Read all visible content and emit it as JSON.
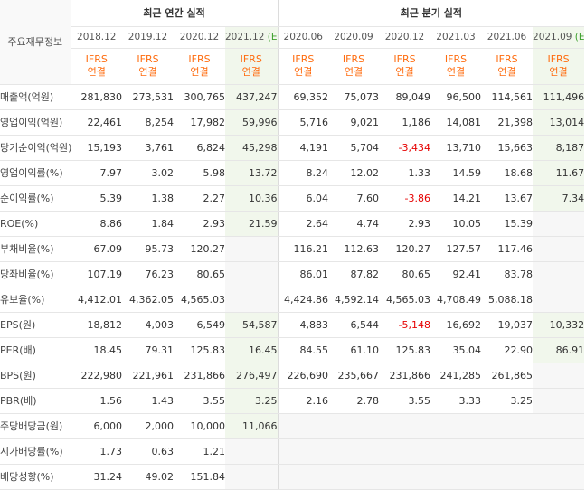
{
  "header": {
    "corner_label": "주요재무정보",
    "annual_title": "최근 연간 실적",
    "quarterly_title": "최근 분기 실적"
  },
  "columns": [
    {
      "date": "2018.12",
      "est": "",
      "ifrs_line1": "IFRS",
      "ifrs_line2": "연결"
    },
    {
      "date": "2019.12",
      "est": "",
      "ifrs_line1": "IFRS",
      "ifrs_line2": "연결"
    },
    {
      "date": "2020.12",
      "est": "",
      "ifrs_line1": "IFRS",
      "ifrs_line2": "연결"
    },
    {
      "date": "2021.12",
      "est": "(E)",
      "ifrs_line1": "IFRS",
      "ifrs_line2": "연결"
    },
    {
      "date": "2020.06",
      "est": "",
      "ifrs_line1": "IFRS",
      "ifrs_line2": "연결"
    },
    {
      "date": "2020.09",
      "est": "",
      "ifrs_line1": "IFRS",
      "ifrs_line2": "연결"
    },
    {
      "date": "2020.12",
      "est": "",
      "ifrs_line1": "IFRS",
      "ifrs_line2": "연결"
    },
    {
      "date": "2021.03",
      "est": "",
      "ifrs_line1": "IFRS",
      "ifrs_line2": "연결"
    },
    {
      "date": "2021.06",
      "est": "",
      "ifrs_line1": "IFRS",
      "ifrs_line2": "연결"
    },
    {
      "date": "2021.09",
      "est": "(E)",
      "ifrs_line1": "IFRS",
      "ifrs_line2": "연결"
    }
  ],
  "rows": [
    {
      "label": "매출액(억원)",
      "values": [
        "281,830",
        "273,531",
        "300,765",
        "437,247",
        "69,352",
        "75,073",
        "89,049",
        "96,500",
        "114,561",
        "111,496"
      ]
    },
    {
      "label": "영업이익(억원)",
      "values": [
        "22,461",
        "8,254",
        "17,982",
        "59,996",
        "5,716",
        "9,021",
        "1,186",
        "14,081",
        "21,398",
        "13,014"
      ]
    },
    {
      "label": "당기순이익(억원)",
      "values": [
        "15,193",
        "3,761",
        "6,824",
        "45,298",
        "4,191",
        "5,704",
        "-3,434",
        "13,710",
        "15,663",
        "8,187"
      ]
    },
    {
      "label": "영업이익률(%)",
      "values": [
        "7.97",
        "3.02",
        "5.98",
        "13.72",
        "8.24",
        "12.02",
        "1.33",
        "14.59",
        "18.68",
        "11.67"
      ]
    },
    {
      "label": "순이익률(%)",
      "values": [
        "5.39",
        "1.38",
        "2.27",
        "10.36",
        "6.04",
        "7.60",
        "-3.86",
        "14.21",
        "13.67",
        "7.34"
      ]
    },
    {
      "label": "ROE(%)",
      "values": [
        "8.86",
        "1.84",
        "2.93",
        "21.59",
        "2.64",
        "4.74",
        "2.93",
        "10.05",
        "15.39",
        ""
      ]
    },
    {
      "label": "부채비율(%)",
      "values": [
        "67.09",
        "95.73",
        "120.27",
        "",
        "116.21",
        "112.63",
        "120.27",
        "127.57",
        "117.46",
        ""
      ]
    },
    {
      "label": "당좌비율(%)",
      "values": [
        "107.19",
        "76.23",
        "80.65",
        "",
        "86.01",
        "87.82",
        "80.65",
        "92.41",
        "83.78",
        ""
      ]
    },
    {
      "label": "유보율(%)",
      "values": [
        "4,412.01",
        "4,362.05",
        "4,565.03",
        "",
        "4,424.86",
        "4,592.14",
        "4,565.03",
        "4,708.49",
        "5,088.18",
        ""
      ]
    },
    {
      "label": "EPS(원)",
      "values": [
        "18,812",
        "4,003",
        "6,549",
        "54,587",
        "4,883",
        "6,544",
        "-5,148",
        "16,692",
        "19,037",
        "10,332"
      ]
    },
    {
      "label": "PER(배)",
      "values": [
        "18.45",
        "79.31",
        "125.83",
        "16.45",
        "84.55",
        "61.10",
        "125.83",
        "35.04",
        "22.90",
        "86.91"
      ]
    },
    {
      "label": "BPS(원)",
      "values": [
        "222,980",
        "221,961",
        "231,866",
        "276,497",
        "226,690",
        "235,667",
        "231,866",
        "241,285",
        "261,865",
        ""
      ]
    },
    {
      "label": "PBR(배)",
      "values": [
        "1.56",
        "1.43",
        "3.55",
        "3.25",
        "2.16",
        "2.78",
        "3.55",
        "3.33",
        "3.25",
        ""
      ]
    },
    {
      "label": "주당배당금(원)",
      "values": [
        "6,000",
        "2,000",
        "10,000",
        "11,066",
        "",
        "",
        "",
        "",
        "",
        ""
      ]
    },
    {
      "label": "시가배당률(%)",
      "values": [
        "1.73",
        "0.63",
        "1.21",
        "",
        "",
        "",
        "",
        "",
        "",
        ""
      ]
    },
    {
      "label": "배당성향(%)",
      "values": [
        "31.24",
        "49.02",
        "151.84",
        "",
        "",
        "",
        "",
        "",
        "",
        ""
      ]
    }
  ],
  "colors": {
    "ifrs": "#ff6c0f",
    "negative": "#e60000",
    "estimate_bg": "#f1f7ec",
    "estimate_marker": "#3c9f2c"
  }
}
